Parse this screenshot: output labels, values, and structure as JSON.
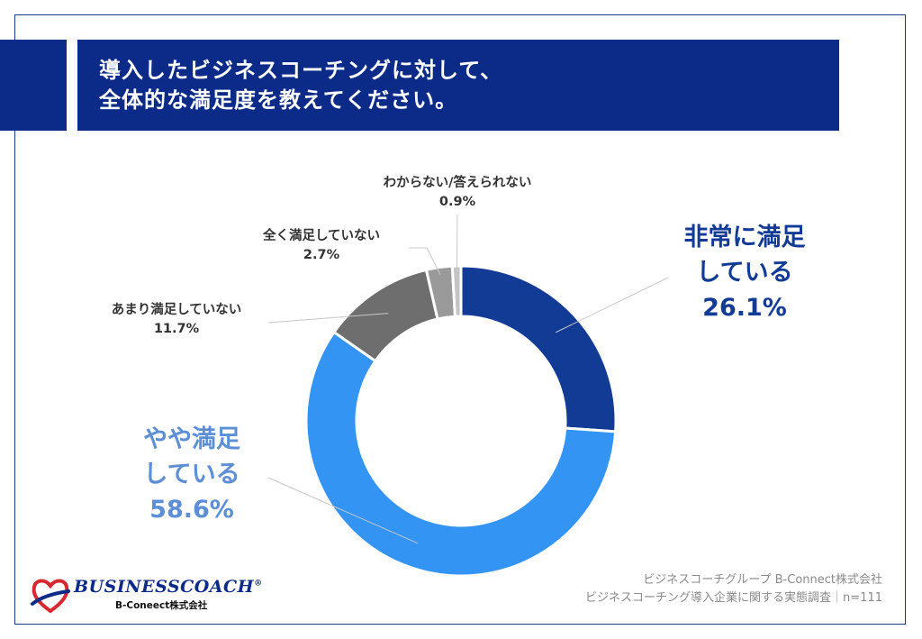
{
  "title": {
    "line1": "導入したビジネスコーチングに対して、",
    "line2": "全体的な満足度を教えてください。"
  },
  "chart_data": {
    "type": "pie",
    "variant": "donut",
    "title": "",
    "slices": [
      {
        "category_line1": "非常に満足",
        "category_line2": "している",
        "value": 26.1,
        "value_label": "26.1%",
        "color": "#123b95"
      },
      {
        "category_line1": "やや満足",
        "category_line2": "している",
        "value": 58.6,
        "value_label": "58.6%",
        "color": "#3494f3"
      },
      {
        "category_line1": "あまり満足していない",
        "category_line2": "",
        "value": 11.7,
        "value_label": "11.7%",
        "color": "#6e6e6e"
      },
      {
        "category_line1": "全く満足していない",
        "category_line2": "",
        "value": 2.7,
        "value_label": "2.7%",
        "color": "#9a9a9a"
      },
      {
        "category_line1": "わからない/答えられない",
        "category_line2": "",
        "value": 0.9,
        "value_label": "0.9%",
        "color": "#c4c4c4"
      }
    ]
  },
  "source": {
    "line1": "ビジネスコーチグループ B-Connect株式会社",
    "line2": "ビジネスコーチング導入企業に関する実態調査｜n=111"
  },
  "logo": {
    "name": "BUSINESSCOACH",
    "registered": "®",
    "subtitle": "B-Coneect株式会社",
    "colors": {
      "navy": "#0c2a88",
      "red": "#d7282f"
    }
  }
}
